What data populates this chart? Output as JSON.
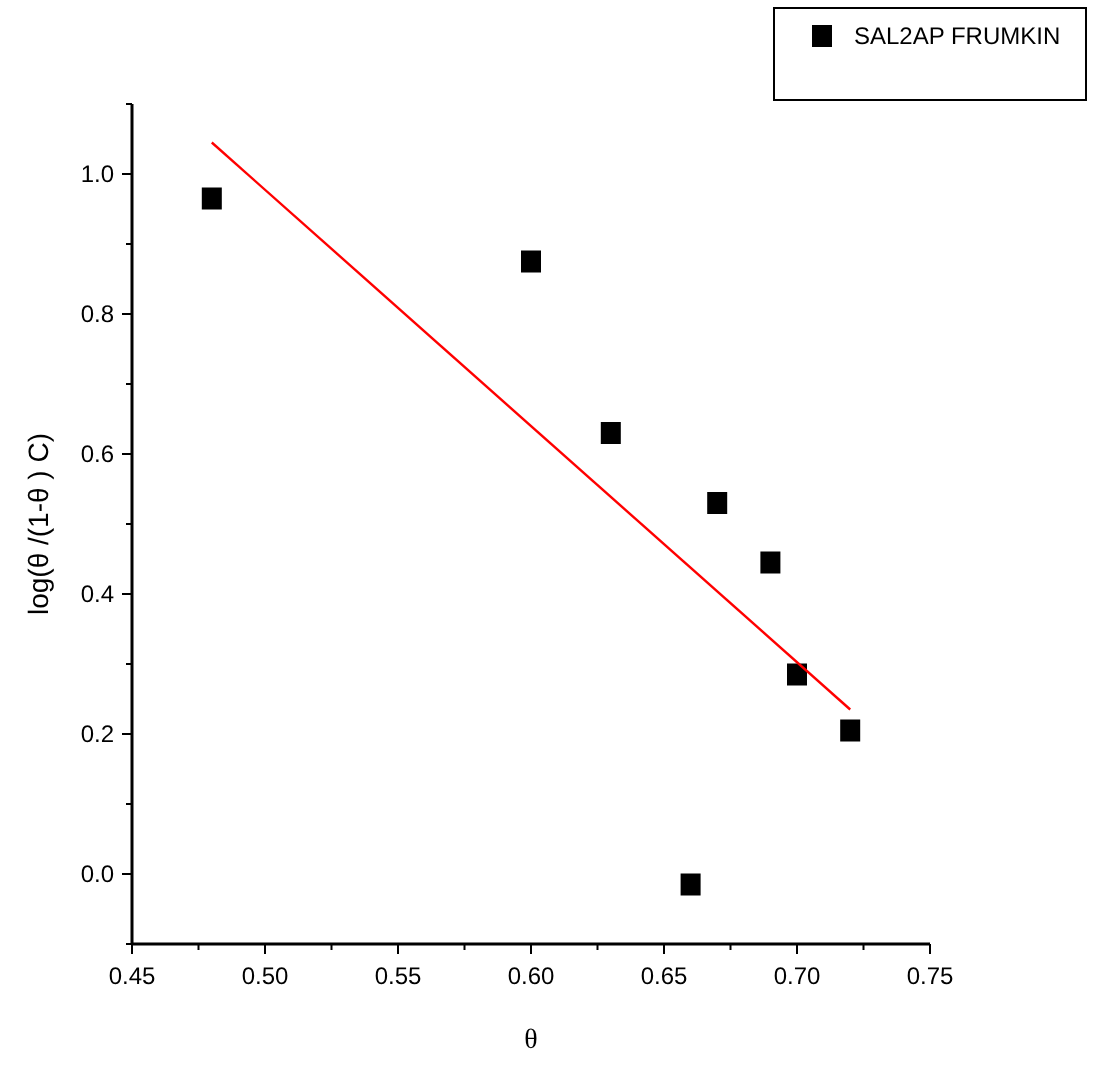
{
  "chart_data": {
    "type": "scatter",
    "xlabel": "θ",
    "ylabel": "log(θ /(1-θ ) C)",
    "xlim": [
      0.45,
      0.75
    ],
    "xticks": [
      0.45,
      {
        "value": 0.475,
        "label": null
      },
      "0.50",
      {
        "value": 0.525,
        "label": null
      },
      0.55,
      {
        "value": 0.575,
        "label": null
      },
      "0.60",
      {
        "value": 0.625,
        "label": null
      },
      0.65,
      {
        "value": 0.675,
        "label": null
      },
      "0.70",
      {
        "value": 0.725,
        "label": null
      },
      0.75
    ],
    "ylim": [
      -0.1,
      1.1
    ],
    "yticks": [
      {
        "value": -0.1,
        "label": null
      },
      {
        "value": 0,
        "label": "0.0"
      },
      {
        "value": 0.1,
        "label": null
      },
      0.2,
      {
        "value": 0.3,
        "label": null
      },
      0.4,
      {
        "value": 0.5,
        "label": null
      },
      0.6,
      {
        "value": 0.7,
        "label": null
      },
      0.8,
      {
        "value": 0.9,
        "label": null
      },
      {
        "value": 1,
        "label": "1.0"
      },
      {
        "value": 1.1,
        "label": null
      }
    ],
    "marker": "square",
    "legend": "top right",
    "grid": false,
    "series": [
      {
        "name": "SAL2AP FRUMKIN",
        "color": "#000000",
        "x": [
          0.48,
          0.6,
          0.63,
          0.66,
          0.67,
          0.69,
          0.7,
          0.72
        ],
        "values": [
          0.965,
          0.875,
          0.63,
          -0.015,
          0.53,
          0.445,
          0.285,
          0.205
        ]
      },
      {
        "type": "line",
        "marker": "none",
        "color": "#ff0000",
        "x": [
          0.48,
          0.72
        ],
        "values": [
          1.045,
          0.235
        ]
      }
    ]
  }
}
